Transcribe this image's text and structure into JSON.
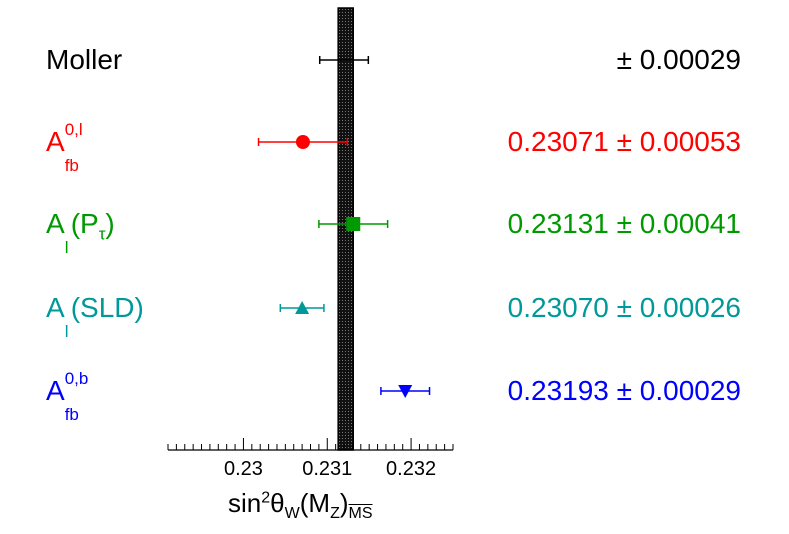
{
  "chart_data": {
    "type": "scatter",
    "title": "",
    "xlabel": {
      "main": "sin",
      "sup": "2",
      "theta": "θ",
      "sub_w": "W",
      "arg_open": "(M",
      "sub_z": "Z",
      "arg_close": ")",
      "sub_scheme": "MS"
    },
    "xlim": [
      0.2291,
      0.2325
    ],
    "xticks": [
      "0.23",
      "0.231",
      "0.232"
    ],
    "xtick_values": [
      0.23,
      0.231,
      0.232
    ],
    "grid": false,
    "band": {
      "center": 0.23122,
      "half_width": 9e-05,
      "fill": "#222222"
    },
    "series": [
      {
        "name_base": "Moller",
        "name_sup": "",
        "name_sub": "",
        "name_tail": "",
        "value": 0.2312,
        "error": 0.00029,
        "result_text": "± 0.00029",
        "marker": "none",
        "color": "#000000"
      },
      {
        "name_base": "A",
        "name_sup": "0,l",
        "name_sub": "fb",
        "name_tail": "",
        "value": 0.23071,
        "error": 0.00053,
        "result_text": "0.23071 ± 0.00053",
        "marker": "circle",
        "color": "#ff0000"
      },
      {
        "name_base": "A",
        "name_sup": "",
        "name_sub": "l",
        "name_tail": "(P",
        "name_tail_sub": "τ",
        "name_tail_end": ")",
        "value": 0.23131,
        "error": 0.00041,
        "result_text": "0.23131 ± 0.00041",
        "marker": "square",
        "color": "#009900"
      },
      {
        "name_base": "A",
        "name_sup": "",
        "name_sub": "l",
        "name_tail": "(SLD)",
        "value": 0.2307,
        "error": 0.00026,
        "result_text": "0.23070 ± 0.00026",
        "marker": "triangle-up",
        "color": "#009999"
      },
      {
        "name_base": "A",
        "name_sup": "0,b",
        "name_sub": "fb",
        "name_tail": "",
        "value": 0.23193,
        "error": 0.00029,
        "result_text": "0.23193 ± 0.00029",
        "marker": "triangle-down",
        "color": "#0000ff"
      }
    ]
  }
}
